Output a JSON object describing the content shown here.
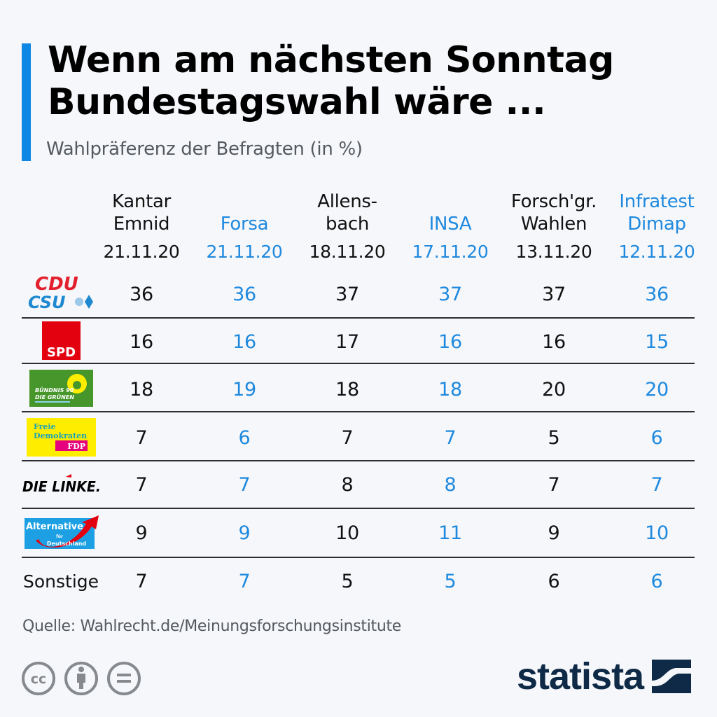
{
  "header": {
    "title_line1": "Wenn am nächsten Sonntag",
    "title_line2": "Bundestagswahl wäre ...",
    "subtitle": "Wahlpräferenz der Befragten (in %)",
    "accent_color": "#0e86e3"
  },
  "chart_data": {
    "type": "table",
    "title": "Wenn am nächsten Sonntag Bundestagswahl wäre ...",
    "subtitle": "Wahlpräferenz der Befragten (in %)",
    "columns": [
      {
        "name": "Kantar\nEmnid",
        "date": "21.11.20",
        "color": "#111111"
      },
      {
        "name": "Forsa",
        "date": "21.11.20",
        "color": "#1f89de"
      },
      {
        "name": "Allens-\nbach",
        "date": "18.11.20",
        "color": "#111111"
      },
      {
        "name": "INSA",
        "date": "17.11.20",
        "color": "#1f89de"
      },
      {
        "name": "Forsch'gr.\nWahlen",
        "date": "13.11.20",
        "color": "#111111"
      },
      {
        "name": "Infratest\nDimap",
        "date": "12.11.20",
        "color": "#1f89de"
      }
    ],
    "rows": [
      {
        "party": "CDU/CSU",
        "logo": "cdu-csu-logo",
        "values": [
          36,
          36,
          37,
          37,
          37,
          36
        ]
      },
      {
        "party": "SPD",
        "logo": "spd-logo",
        "values": [
          16,
          16,
          17,
          16,
          16,
          15
        ]
      },
      {
        "party": "Bündnis 90/Die Grünen",
        "logo": "gruene-logo",
        "values": [
          18,
          19,
          18,
          18,
          20,
          20
        ]
      },
      {
        "party": "FDP",
        "logo": "fdp-logo",
        "values": [
          7,
          6,
          7,
          7,
          5,
          6
        ]
      },
      {
        "party": "Die Linke",
        "logo": "linke-logo",
        "values": [
          7,
          7,
          8,
          8,
          7,
          7
        ]
      },
      {
        "party": "AfD",
        "logo": "afd-logo",
        "values": [
          9,
          9,
          10,
          11,
          9,
          10
        ]
      },
      {
        "party": "Sonstige",
        "logo": null,
        "values": [
          7,
          7,
          5,
          5,
          6,
          6
        ]
      }
    ]
  },
  "logos": {
    "cdu_text": "CDU",
    "csu_text": "CSU",
    "spd_text": "SPD",
    "gruene_line1": "BÜNDNIS 90",
    "gruene_line2": "DIE GRÜNEN",
    "fdp_line1": "Freie",
    "fdp_line2": "Demokraten",
    "fdp_line3": "FDP",
    "linke_text": "DIE LINKE.",
    "afd_line1": "Alternative",
    "afd_line2": "für",
    "afd_line3": "Deutschland"
  },
  "sonstige_label": "Sonstige",
  "footer": {
    "source": "Quelle: Wahlrecht.de/Meinungsforschungsinstitute",
    "license_icons": [
      "cc-icon",
      "attribution-icon",
      "no-derivatives-icon"
    ],
    "brand": "statista"
  }
}
